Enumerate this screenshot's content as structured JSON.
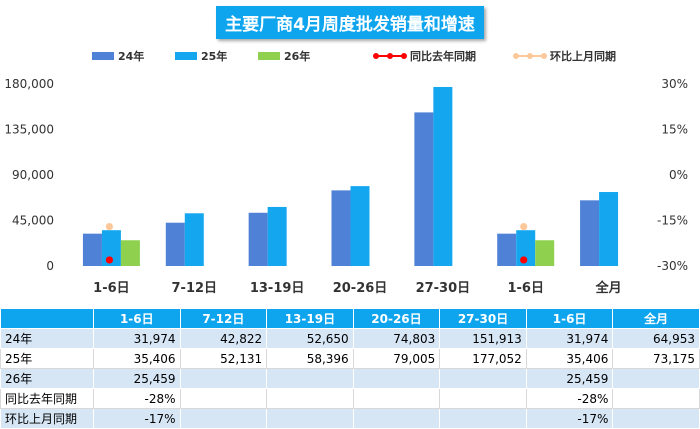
{
  "chart_data": {
    "type": "bar",
    "title": "主要厂商4月周度批发销量和增速",
    "categories": [
      "1-6日",
      "7-12日",
      "13-19日",
      "20-26日",
      "27-30日",
      "1-6日",
      "全月"
    ],
    "series": [
      {
        "name": "24年",
        "kind": "bar",
        "color": "#4f81d6",
        "values": [
          31974,
          42822,
          52650,
          74803,
          151913,
          31974,
          64953
        ]
      },
      {
        "name": "25年",
        "kind": "bar",
        "color": "#14a7f0",
        "values": [
          35406,
          52131,
          58396,
          79005,
          177052,
          35406,
          73175
        ]
      },
      {
        "name": "26年",
        "kind": "bar",
        "color": "#8fd14f",
        "values": [
          25459,
          null,
          null,
          null,
          null,
          25459,
          null
        ]
      },
      {
        "name": "同比去年同期",
        "kind": "line",
        "axis": "right",
        "color": "#ff0000",
        "values": [
          -28,
          null,
          null,
          null,
          null,
          -28,
          null
        ]
      },
      {
        "name": "环比上月同期",
        "kind": "line",
        "axis": "right",
        "color": "#fcc89a",
        "values": [
          -17,
          null,
          null,
          null,
          null,
          -17,
          null
        ]
      }
    ],
    "left_axis": {
      "min": 0,
      "max": 180000,
      "ticks": [
        "0",
        "45,000",
        "90,000",
        "135,000",
        "180,000"
      ]
    },
    "right_axis": {
      "min": -30,
      "max": 30,
      "ticks": [
        "-30%",
        "-15%",
        "0%",
        "15%",
        "30%"
      ]
    },
    "legend_position": "top"
  },
  "table": {
    "header": [
      "1-6日",
      "7-12日",
      "13-19日",
      "20-26日",
      "27-30日",
      "1-6日",
      "全月"
    ],
    "rows": [
      {
        "label": "24年",
        "cells": [
          "31,974",
          "42,822",
          "52,650",
          "74,803",
          "151,913",
          "31,974",
          "64,953"
        ]
      },
      {
        "label": "25年",
        "cells": [
          "35,406",
          "52,131",
          "58,396",
          "79,005",
          "177,052",
          "35,406",
          "73,175"
        ]
      },
      {
        "label": "26年",
        "cells": [
          "25,459",
          "",
          "",
          "",
          "",
          "25,459",
          ""
        ]
      },
      {
        "label": "同比去年同期",
        "cells": [
          "-28%",
          "",
          "",
          "",
          "",
          "-28%",
          ""
        ]
      },
      {
        "label": "环比上月同期",
        "cells": [
          "-17%",
          "",
          "",
          "",
          "",
          "-17%",
          ""
        ]
      }
    ]
  }
}
